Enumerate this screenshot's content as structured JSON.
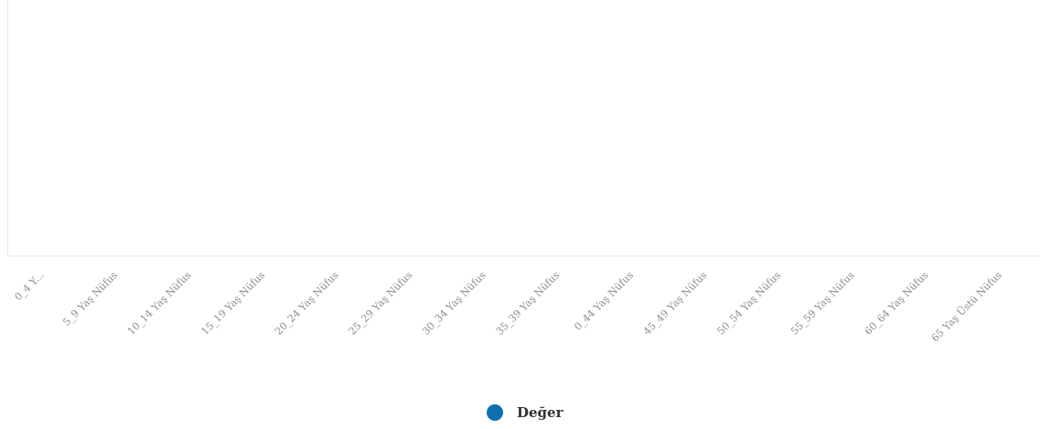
{
  "chart_data": {
    "type": "bar",
    "categories": [
      "0_4 Y...",
      "5_9 Yaş Nüfus",
      "10_14 Yaş Nüfus",
      "15_19 Yaş Nüfus",
      "20_24 Yaş Nüfus",
      "25_29 Yaş Nüfus",
      "30_34 Yaş Nüfus",
      "35_39 Yaş Nüfus",
      "0_44 Yaş Nüfus",
      "45_49 Yaş Nüfus",
      "50_54 Yaş Nüfus",
      "55_59 Yaş Nüfus",
      "60_64 Yaş Nüfus",
      "65 Yaş Üstü Nüfus"
    ],
    "series": [
      {
        "name": "Değer",
        "color": "#0f6fae",
        "values": [
          null,
          null,
          null,
          null,
          null,
          null,
          null,
          null,
          null,
          null,
          null,
          null,
          null,
          null
        ]
      }
    ],
    "title": "",
    "xlabel": "",
    "ylabel": "",
    "grid": false,
    "legend_position": "bottom-center"
  },
  "legend": {
    "label": "Değer",
    "color": "#0f6fae"
  }
}
